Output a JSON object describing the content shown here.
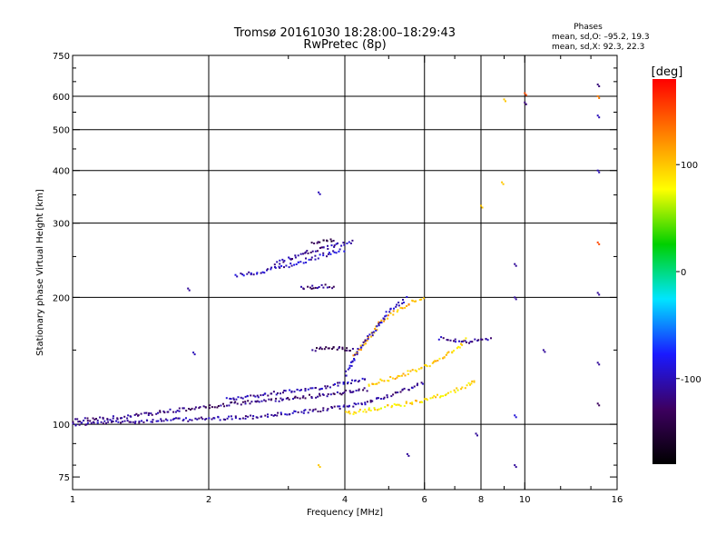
{
  "header": {
    "title_line1": "Tromsø 20161030 18:28:00–18:29:43",
    "title_line2": "RwPretec (8p)"
  },
  "stats": {
    "heading": "Phases",
    "line_o": "mean, sd,O: –95.2, 19.3",
    "line_x": "mean, sd,X:  92.3, 22.3"
  },
  "colorbar": {
    "unit_label": "[deg]",
    "ticks": [
      {
        "value": 100,
        "label": "100"
      },
      {
        "value": 0,
        "label": "0"
      },
      {
        "value": -100,
        "label": "-100"
      }
    ],
    "range": [
      -180,
      180
    ],
    "stops": [
      "#000000",
      "#3d0060",
      "#1a1aff",
      "#00e5ff",
      "#00d000",
      "#ffff00",
      "#ff8000",
      "#ff0000"
    ]
  },
  "chart_data": {
    "type": "scatter",
    "xlabel": "Frequency [MHz]",
    "ylabel": "Stationary phase Virtual Height [km]",
    "xscale": "log",
    "yscale": "log",
    "xlim": [
      1,
      16
    ],
    "ylim": [
      70,
      750
    ],
    "xticks": [
      1,
      2,
      4,
      6,
      8,
      10,
      16
    ],
    "xtick_labels": [
      "1",
      "2",
      "4",
      "6",
      "8",
      "10",
      "16"
    ],
    "yticks": [
      75,
      100,
      200,
      300,
      400,
      500,
      600,
      750
    ],
    "ytick_labels": [
      "75",
      "100",
      "200",
      "300",
      "400",
      "500",
      "600",
      "750"
    ],
    "grid_x": [
      1,
      2,
      4,
      6,
      8,
      10
    ],
    "grid_y": [
      100,
      200,
      300,
      400,
      500,
      600
    ],
    "color_variable": "phase [deg]",
    "traces": [
      {
        "x": [
          1.0,
          1.2,
          1.5,
          2.0,
          2.5,
          3.0,
          3.5,
          4.0,
          4.5,
          5.0,
          5.5,
          6.0
        ],
        "y": [
          100,
          101,
          102,
          103,
          104,
          106,
          108,
          110,
          113,
          117,
          121,
          126
        ],
        "phase": -110
      },
      {
        "x": [
          1.0,
          1.3,
          1.6,
          2.0,
          2.5,
          3.0,
          3.5,
          4.0,
          4.5
        ],
        "y": [
          102,
          104,
          107,
          110,
          113,
          115,
          117,
          119,
          121
        ],
        "phase": -120
      },
      {
        "x": [
          2.2,
          2.6,
          3.0,
          3.5,
          4.0,
          4.5
        ],
        "y": [
          115,
          117,
          120,
          122,
          125,
          128
        ],
        "phase": -105
      },
      {
        "x": [
          4.0,
          4.5,
          5.0,
          5.5,
          6.0,
          6.5,
          7.0,
          7.5,
          7.8
        ],
        "y": [
          106,
          108,
          110,
          112,
          114,
          117,
          120,
          124,
          128
        ],
        "phase": 90
      },
      {
        "x": [
          4.5,
          5.0,
          5.5,
          6.0,
          6.5,
          7.0,
          7.5
        ],
        "y": [
          124,
          128,
          132,
          137,
          142,
          150,
          160
        ],
        "phase": 100
      },
      {
        "x": [
          4.2,
          4.5,
          4.8,
          5.2,
          5.6,
          6.0
        ],
        "y": [
          145,
          160,
          175,
          185,
          195,
          200
        ],
        "phase": 110
      },
      {
        "x": [
          4.0,
          4.3,
          4.7,
          5.0,
          5.5
        ],
        "y": [
          130,
          150,
          170,
          185,
          200
        ],
        "phase": -100
      },
      {
        "x": [
          3.4,
          3.6,
          3.8,
          4.0,
          4.2
        ],
        "y": [
          150,
          151,
          152,
          151,
          150
        ],
        "phase": -130
      },
      {
        "x": [
          6.5,
          7.0,
          7.5,
          8.0,
          8.5
        ],
        "y": [
          160,
          158,
          157,
          158,
          159
        ],
        "phase": -110
      },
      {
        "x": [
          2.3,
          2.6,
          3.0,
          3.3,
          3.6,
          4.0
        ],
        "y": [
          225,
          230,
          238,
          245,
          252,
          260
        ],
        "phase": -100
      },
      {
        "x": [
          2.8,
          3.1,
          3.4,
          3.8,
          4.2
        ],
        "y": [
          240,
          250,
          258,
          265,
          272
        ],
        "phase": -110
      },
      {
        "x": [
          3.2,
          3.4,
          3.6,
          3.8
        ],
        "y": [
          210,
          212,
          213,
          212
        ],
        "phase": -120
      },
      {
        "x": [
          3.4,
          3.6,
          3.8
        ],
        "y": [
          270,
          272,
          273
        ],
        "phase": -140
      }
    ],
    "points": [
      {
        "x": 3.5,
        "y": 355,
        "phase": -100
      },
      {
        "x": 1.85,
        "y": 148,
        "phase": -100
      },
      {
        "x": 1.8,
        "y": 210,
        "phase": -110
      },
      {
        "x": 8.9,
        "y": 375,
        "phase": 100
      },
      {
        "x": 9.0,
        "y": 590,
        "phase": 100
      },
      {
        "x": 10.0,
        "y": 610,
        "phase": 150
      },
      {
        "x": 10.0,
        "y": 580,
        "phase": -120
      },
      {
        "x": 14.5,
        "y": 640,
        "phase": -120
      },
      {
        "x": 14.5,
        "y": 600,
        "phase": 130
      },
      {
        "x": 14.5,
        "y": 540,
        "phase": -100
      },
      {
        "x": 14.5,
        "y": 400,
        "phase": -100
      },
      {
        "x": 14.5,
        "y": 270,
        "phase": 150
      },
      {
        "x": 14.5,
        "y": 205,
        "phase": -110
      },
      {
        "x": 14.5,
        "y": 140,
        "phase": -110
      },
      {
        "x": 14.5,
        "y": 112,
        "phase": -130
      },
      {
        "x": 9.5,
        "y": 240,
        "phase": -110
      },
      {
        "x": 9.5,
        "y": 200,
        "phase": -110
      },
      {
        "x": 9.5,
        "y": 105,
        "phase": -90
      },
      {
        "x": 9.5,
        "y": 80,
        "phase": -110
      },
      {
        "x": 8.0,
        "y": 330,
        "phase": 100
      },
      {
        "x": 3.5,
        "y": 80,
        "phase": 100
      },
      {
        "x": 5.5,
        "y": 85,
        "phase": -110
      },
      {
        "x": 7.8,
        "y": 95,
        "phase": -110
      },
      {
        "x": 11.0,
        "y": 150,
        "phase": -110
      }
    ]
  }
}
